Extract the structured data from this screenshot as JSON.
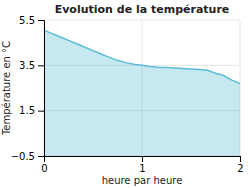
{
  "chart_data": {
    "type": "area",
    "title": "Evolution de la température",
    "xlabel": "heure par heure",
    "ylabel": "Température en °C",
    "xlim": [
      0,
      2
    ],
    "ylim": [
      -0.5,
      5.5
    ],
    "xticks": [
      0,
      1,
      2
    ],
    "yticks": [
      {
        "value": -0.5,
        "label": "−0.5"
      },
      1.5,
      3.5,
      5.5
    ],
    "grid": true,
    "color": "#5bbcd6",
    "x": [
      0.0,
      0.083,
      0.167,
      0.25,
      0.333,
      0.417,
      0.5,
      0.583,
      0.667,
      0.75,
      0.833,
      0.917,
      1.0,
      1.083,
      1.167,
      1.25,
      1.333,
      1.417,
      1.5,
      1.583,
      1.667,
      1.75,
      1.833,
      1.917,
      2.0
    ],
    "values": [
      5.05,
      4.9,
      4.75,
      4.6,
      4.45,
      4.3,
      4.15,
      4.0,
      3.85,
      3.72,
      3.62,
      3.55,
      3.5,
      3.45,
      3.42,
      3.4,
      3.38,
      3.36,
      3.34,
      3.32,
      3.28,
      3.15,
      3.05,
      2.85,
      2.7
    ]
  }
}
